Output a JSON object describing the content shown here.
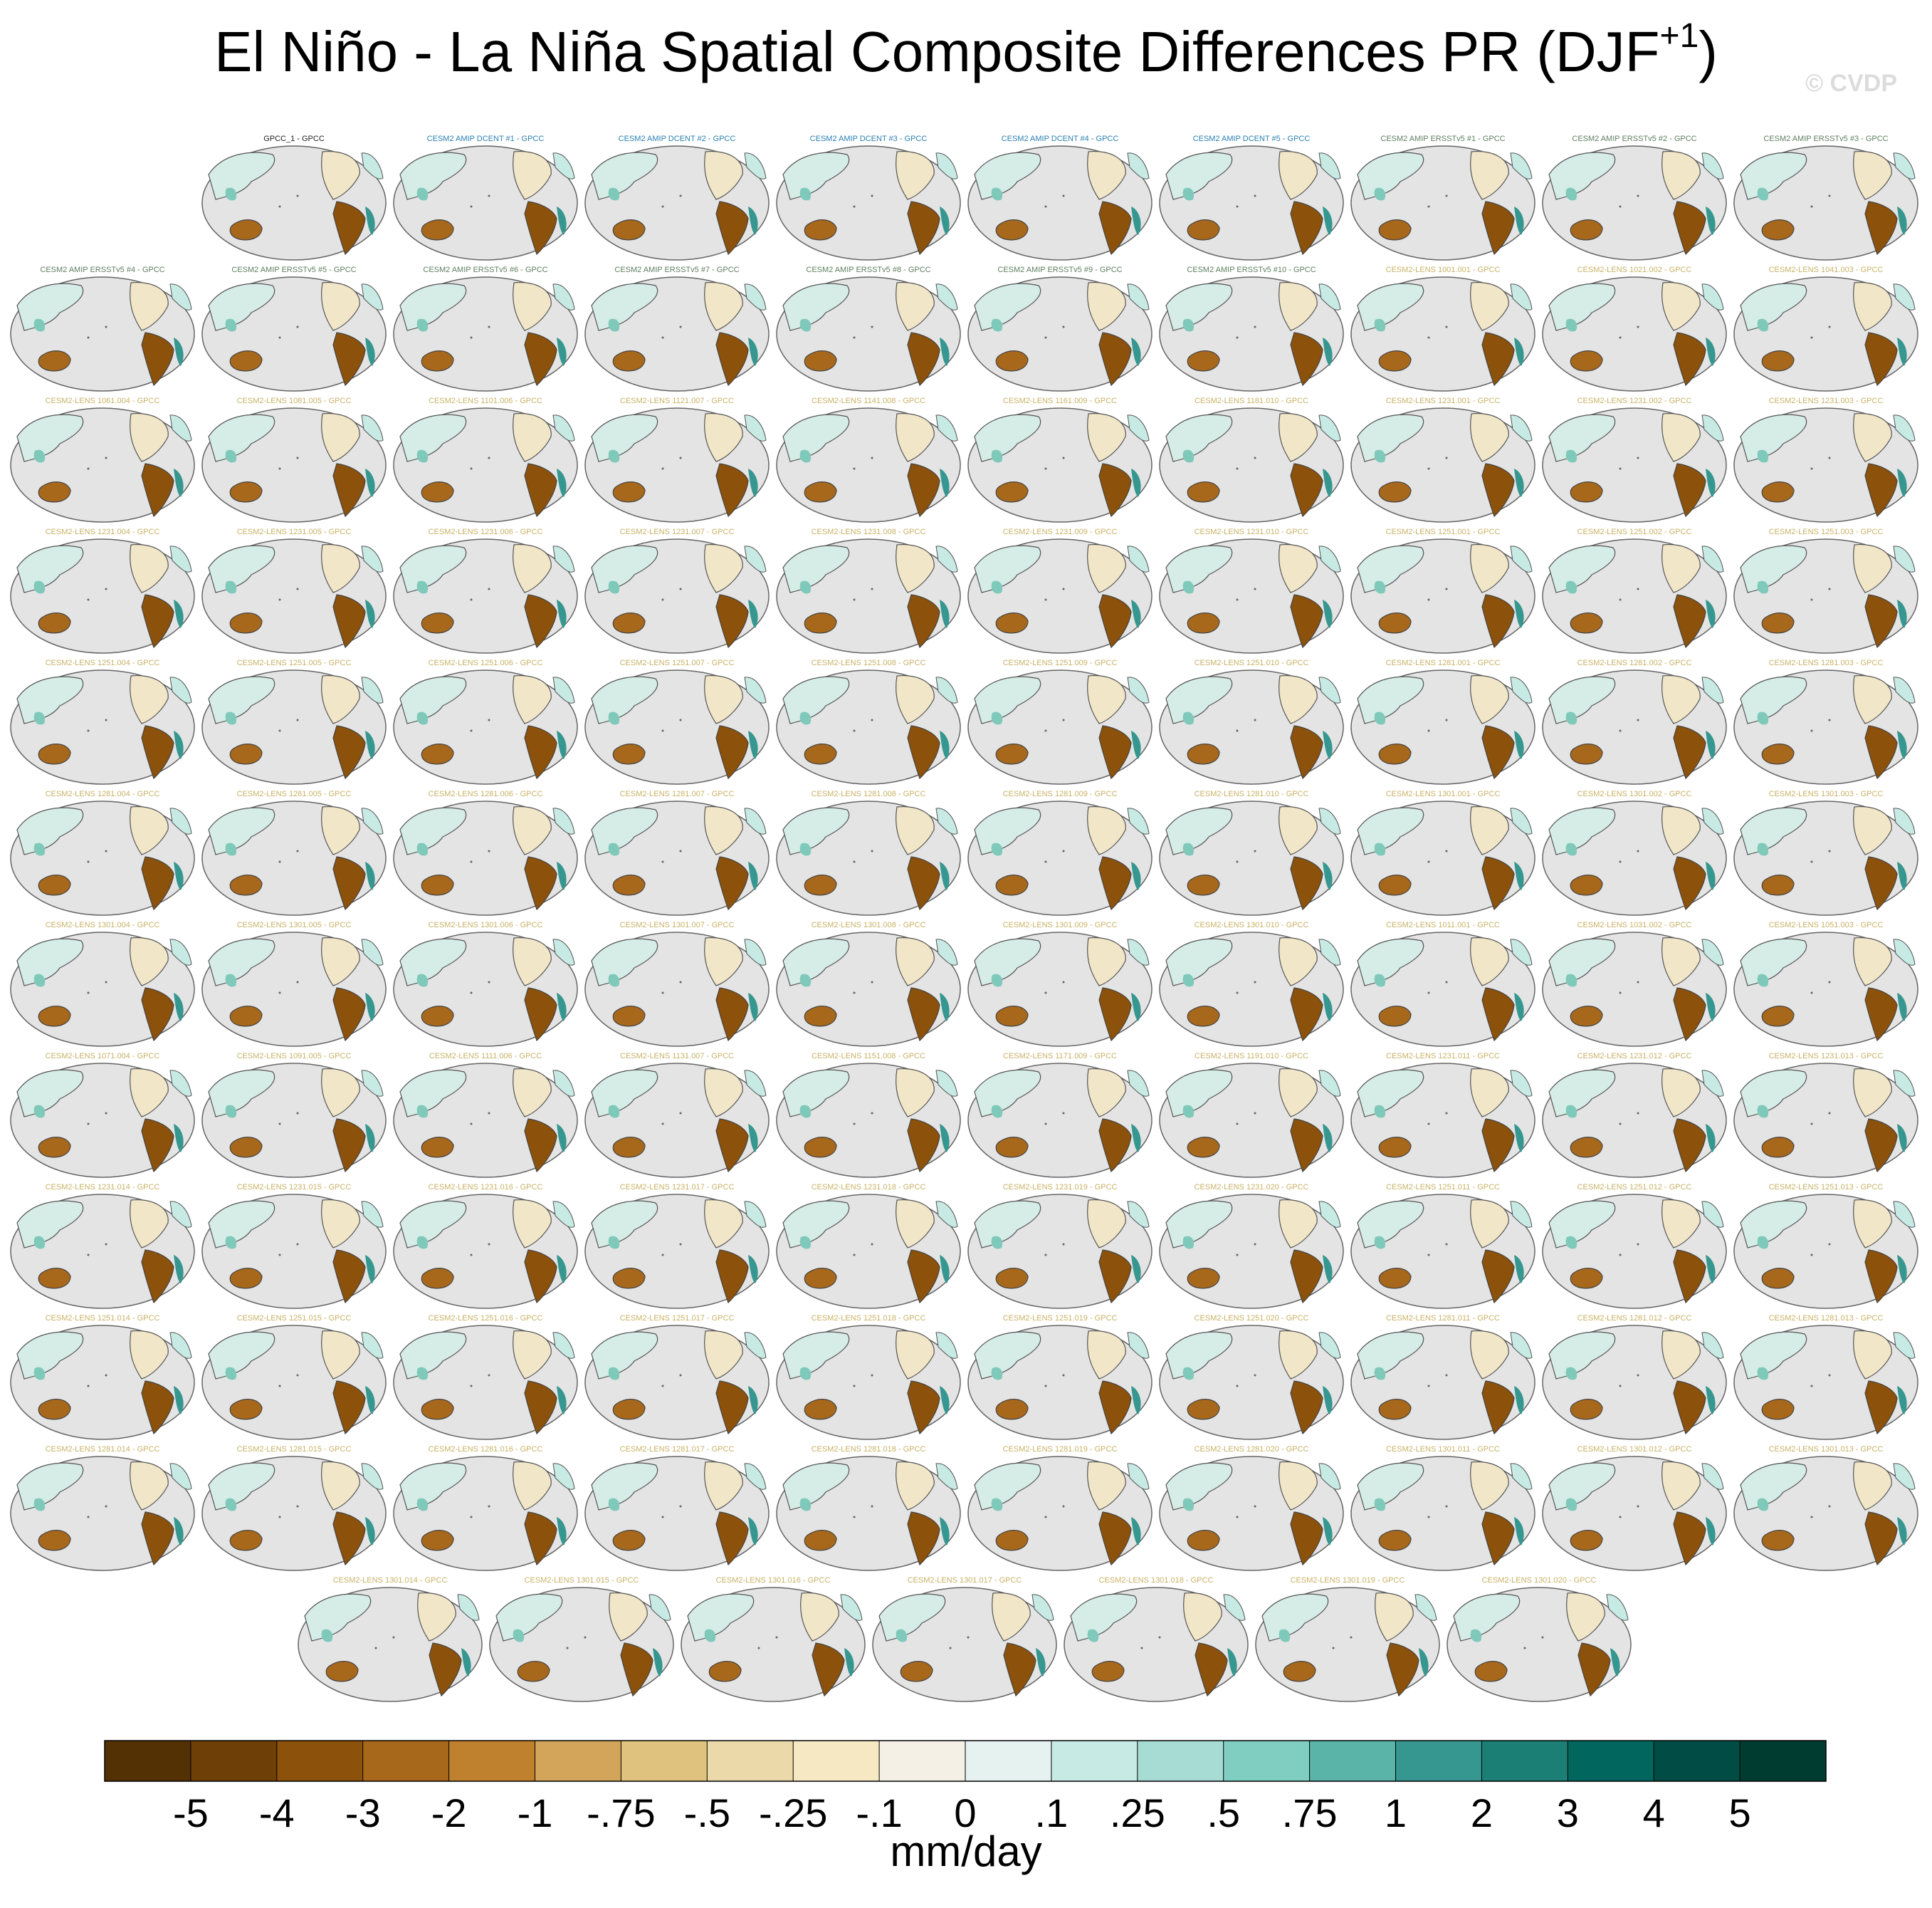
{
  "chart_data": {
    "type": "map-panels",
    "title_parts": [
      "El Niño - La Niña Spatial Composite Differences PR (DJF",
      "+1",
      ")"
    ],
    "watermark": "© CVDP",
    "panel_groups": [
      {
        "color": "#222222",
        "titles": [
          "GPCC_1 - GPCC"
        ]
      },
      {
        "color": "#2a7fb0",
        "titles": [
          "CESM2 AMIP DCENT #1 - GPCC",
          "CESM2 AMIP DCENT #2 - GPCC",
          "CESM2 AMIP DCENT #3 - GPCC",
          "CESM2 AMIP DCENT #4 - GPCC",
          "CESM2 AMIP DCENT #5 - GPCC"
        ]
      },
      {
        "color": "#5f7f5f",
        "titles": [
          "CESM2 AMIP ERSSTv5 #1 - GPCC",
          "CESM2 AMIP ERSSTv5 #2 - GPCC",
          "CESM2 AMIP ERSSTv5 #3 - GPCC",
          "CESM2 AMIP ERSSTv5 #4 - GPCC",
          "CESM2 AMIP ERSSTv5 #5 - GPCC",
          "CESM2 AMIP ERSSTv5 #6 - GPCC",
          "CESM2 AMIP ERSSTv5 #7 - GPCC",
          "CESM2 AMIP ERSSTv5 #8 - GPCC",
          "CESM2 AMIP ERSSTv5 #9 - GPCC",
          "CESM2 AMIP ERSSTv5 #10 - GPCC"
        ]
      },
      {
        "color": "#c8b266",
        "titles": [
          "CESM2-LENS 1001.001 - GPCC",
          "CESM2-LENS 1021.002 - GPCC",
          "CESM2-LENS 1041.003 - GPCC",
          "CESM2-LENS 1061.004 - GPCC",
          "CESM2-LENS 1081.005 - GPCC",
          "CESM2-LENS 1101.006 - GPCC",
          "CESM2-LENS 1121.007 - GPCC",
          "CESM2-LENS 1141.008 - GPCC",
          "CESM2-LENS 1161.009 - GPCC",
          "CESM2-LENS 1181.010 - GPCC",
          "CESM2-LENS 1231.001 - GPCC",
          "CESM2-LENS 1231.002 - GPCC",
          "CESM2-LENS 1231.003 - GPCC",
          "CESM2-LENS 1231.004 - GPCC",
          "CESM2-LENS 1231.005 - GPCC",
          "CESM2-LENS 1231.006 - GPCC",
          "CESM2-LENS 1231.007 - GPCC",
          "CESM2-LENS 1231.008 - GPCC",
          "CESM2-LENS 1231.009 - GPCC",
          "CESM2-LENS 1231.010 - GPCC",
          "CESM2-LENS 1251.001 - GPCC",
          "CESM2-LENS 1251.002 - GPCC",
          "CESM2-LENS 1251.003 - GPCC",
          "CESM2-LENS 1251.004 - GPCC",
          "CESM2-LENS 1251.005 - GPCC",
          "CESM2-LENS 1251.006 - GPCC",
          "CESM2-LENS 1251.007 - GPCC",
          "CESM2-LENS 1251.008 - GPCC",
          "CESM2-LENS 1251.009 - GPCC",
          "CESM2-LENS 1251.010 - GPCC",
          "CESM2-LENS 1281.001 - GPCC",
          "CESM2-LENS 1281.002 - GPCC",
          "CESM2-LENS 1281.003 - GPCC",
          "CESM2-LENS 1281.004 - GPCC",
          "CESM2-LENS 1281.005 - GPCC",
          "CESM2-LENS 1281.006 - GPCC",
          "CESM2-LENS 1281.007 - GPCC",
          "CESM2-LENS 1281.008 - GPCC",
          "CESM2-LENS 1281.009 - GPCC",
          "CESM2-LENS 1281.010 - GPCC",
          "CESM2-LENS 1301.001 - GPCC",
          "CESM2-LENS 1301.002 - GPCC",
          "CESM2-LENS 1301.003 - GPCC",
          "CESM2-LENS 1301.004 - GPCC",
          "CESM2-LENS 1301.005 - GPCC",
          "CESM2-LENS 1301.006 - GPCC",
          "CESM2-LENS 1301.007 - GPCC",
          "CESM2-LENS 1301.008 - GPCC",
          "CESM2-LENS 1301.009 - GPCC",
          "CESM2-LENS 1301.010 - GPCC",
          "CESM2-LENS 1011.001 - GPCC",
          "CESM2-LENS 1031.002 - GPCC",
          "CESM2-LENS 1051.003 - GPCC",
          "CESM2-LENS 1071.004 - GPCC",
          "CESM2-LENS 1091.005 - GPCC",
          "CESM2-LENS 1111.006 - GPCC",
          "CESM2-LENS 1131.007 - GPCC",
          "CESM2-LENS 1151.008 - GPCC",
          "CESM2-LENS 1171.009 - GPCC",
          "CESM2-LENS 1191.010 - GPCC",
          "CESM2-LENS 1231.011 - GPCC",
          "CESM2-LENS 1231.012 - GPCC",
          "CESM2-LENS 1231.013 - GPCC",
          "CESM2-LENS 1231.014 - GPCC",
          "CESM2-LENS 1231.015 - GPCC",
          "CESM2-LENS 1231.016 - GPCC",
          "CESM2-LENS 1231.017 - GPCC",
          "CESM2-LENS 1231.018 - GPCC",
          "CESM2-LENS 1231.019 - GPCC",
          "CESM2-LENS 1231.020 - GPCC",
          "CESM2-LENS 1251.011 - GPCC",
          "CESM2-LENS 1251.012 - GPCC",
          "CESM2-LENS 1251.013 - GPCC",
          "CESM2-LENS 1251.014 - GPCC",
          "CESM2-LENS 1251.015 - GPCC",
          "CESM2-LENS 1251.016 - GPCC",
          "CESM2-LENS 1251.017 - GPCC",
          "CESM2-LENS 1251.018 - GPCC",
          "CESM2-LENS 1251.019 - GPCC",
          "CESM2-LENS 1251.020 - GPCC",
          "CESM2-LENS 1281.011 - GPCC",
          "CESM2-LENS 1281.012 - GPCC",
          "CESM2-LENS 1281.013 - GPCC",
          "CESM2-LENS 1281.014 - GPCC",
          "CESM2-LENS 1281.015 - GPCC",
          "CESM2-LENS 1281.016 - GPCC",
          "CESM2-LENS 1281.017 - GPCC",
          "CESM2-LENS 1281.018 - GPCC",
          "CESM2-LENS 1281.019 - GPCC",
          "CESM2-LENS 1281.020 - GPCC",
          "CESM2-LENS 1301.011 - GPCC",
          "CESM2-LENS 1301.012 - GPCC",
          "CESM2-LENS 1301.013 - GPCC",
          "CESM2-LENS 1301.014 - GPCC",
          "CESM2-LENS 1301.015 - GPCC",
          "CESM2-LENS 1301.016 - GPCC",
          "CESM2-LENS 1301.017 - GPCC",
          "CESM2-LENS 1301.018 - GPCC",
          "CESM2-LENS 1301.019 - GPCC",
          "CESM2-LENS 1301.020 - GPCC"
        ]
      }
    ],
    "colorbar": {
      "label": "mm/day",
      "colors": [
        "#543005",
        "#6f3f08",
        "#8c510a",
        "#a8681b",
        "#bf812d",
        "#d2a55a",
        "#dfc27d",
        "#ecd9a9",
        "#f6e8c3",
        "#f5f0e6",
        "#e6f2f0",
        "#c7eae5",
        "#a6dcd3",
        "#80cdc1",
        "#5ab4a7",
        "#35978f",
        "#1b7f76",
        "#01665e",
        "#014c44",
        "#003c30"
      ],
      "ticks": [
        -5,
        -4,
        -3,
        -2,
        -1,
        {
          "value": -0.75,
          "label": "-.75"
        },
        {
          "value": -0.5,
          "label": "-.5"
        },
        {
          "value": -0.25,
          "label": "-.25"
        },
        {
          "value": -0.1,
          "label": "-.1"
        },
        0,
        {
          "value": 0.1,
          "label": ".1"
        },
        {
          "value": 0.25,
          "label": ".25"
        },
        {
          "value": 0.5,
          "label": ".5"
        },
        {
          "value": 0.75,
          "label": ".75"
        },
        1,
        2,
        3,
        4,
        5
      ]
    }
  }
}
